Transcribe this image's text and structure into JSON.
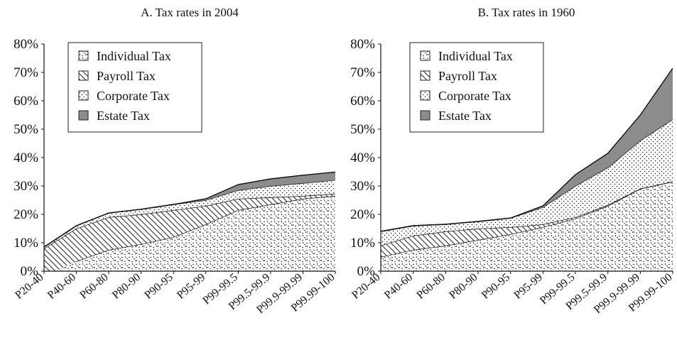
{
  "chart_data": [
    {
      "type": "area",
      "stacked": true,
      "title": "A. Tax rates in 2004",
      "categories": [
        "P20-40",
        "P40-60",
        "P60-80",
        "P80-90",
        "P90-95",
        "P95-99",
        "P99-99.5",
        "P99.5-99.9",
        "P99.9-99.99",
        "P99.99-100"
      ],
      "series": [
        {
          "name": "Individual Tax",
          "values": [
            -2.0,
            3.5,
            7.5,
            9.5,
            12.0,
            16.5,
            21.5,
            23.5,
            25.5,
            26.5
          ]
        },
        {
          "name": "Payroll Tax",
          "values": [
            10.0,
            11.5,
            11.5,
            10.5,
            9.5,
            6.5,
            4.0,
            2.5,
            1.0,
            0.8
          ]
        },
        {
          "name": "Corporate Tax",
          "values": [
            0.5,
            1.0,
            1.5,
            1.8,
            2.0,
            2.0,
            3.0,
            4.0,
            4.5,
            4.8
          ]
        },
        {
          "name": "Estate Tax",
          "values": [
            0.0,
            0.0,
            0.0,
            0.0,
            0.0,
            0.5,
            2.0,
            2.5,
            2.8,
            2.8
          ]
        }
      ],
      "ylim": [
        0,
        80
      ],
      "yticks": [
        "0%",
        "10%",
        "20%",
        "30%",
        "40%",
        "50%",
        "60%",
        "70%",
        "80%"
      ],
      "legend_position": "top-left",
      "grid": false
    },
    {
      "type": "area",
      "stacked": true,
      "title": "B. Tax rates in 1960",
      "categories": [
        "P20-40",
        "P40-60",
        "P60-80",
        "P80-90",
        "P90-95",
        "P95-99",
        "P99-99.5",
        "P99.5-99.9",
        "P99.9-99.99",
        "P99.99-100"
      ],
      "series": [
        {
          "name": "Individual Tax",
          "values": [
            5.0,
            7.5,
            9.0,
            11.0,
            13.0,
            15.5,
            18.5,
            23.0,
            29.0,
            31.5
          ]
        },
        {
          "name": "Payroll Tax",
          "values": [
            4.0,
            5.0,
            5.0,
            4.0,
            2.5,
            1.0,
            0.5,
            0.3,
            0.1,
            0.1
          ]
        },
        {
          "name": "Corporate Tax",
          "values": [
            5.0,
            3.5,
            2.5,
            2.5,
            3.2,
            6.0,
            11.0,
            13.2,
            16.9,
            21.9
          ]
        },
        {
          "name": "Estate Tax",
          "values": [
            0.0,
            0.0,
            0.0,
            0.0,
            0.0,
            0.5,
            4.0,
            5.0,
            9.0,
            18.0
          ]
        }
      ],
      "ylim": [
        0,
        80
      ],
      "yticks": [
        "0%",
        "10%",
        "20%",
        "30%",
        "40%",
        "50%",
        "60%",
        "70%",
        "80%"
      ],
      "legend_position": "top-left",
      "grid": false
    }
  ]
}
